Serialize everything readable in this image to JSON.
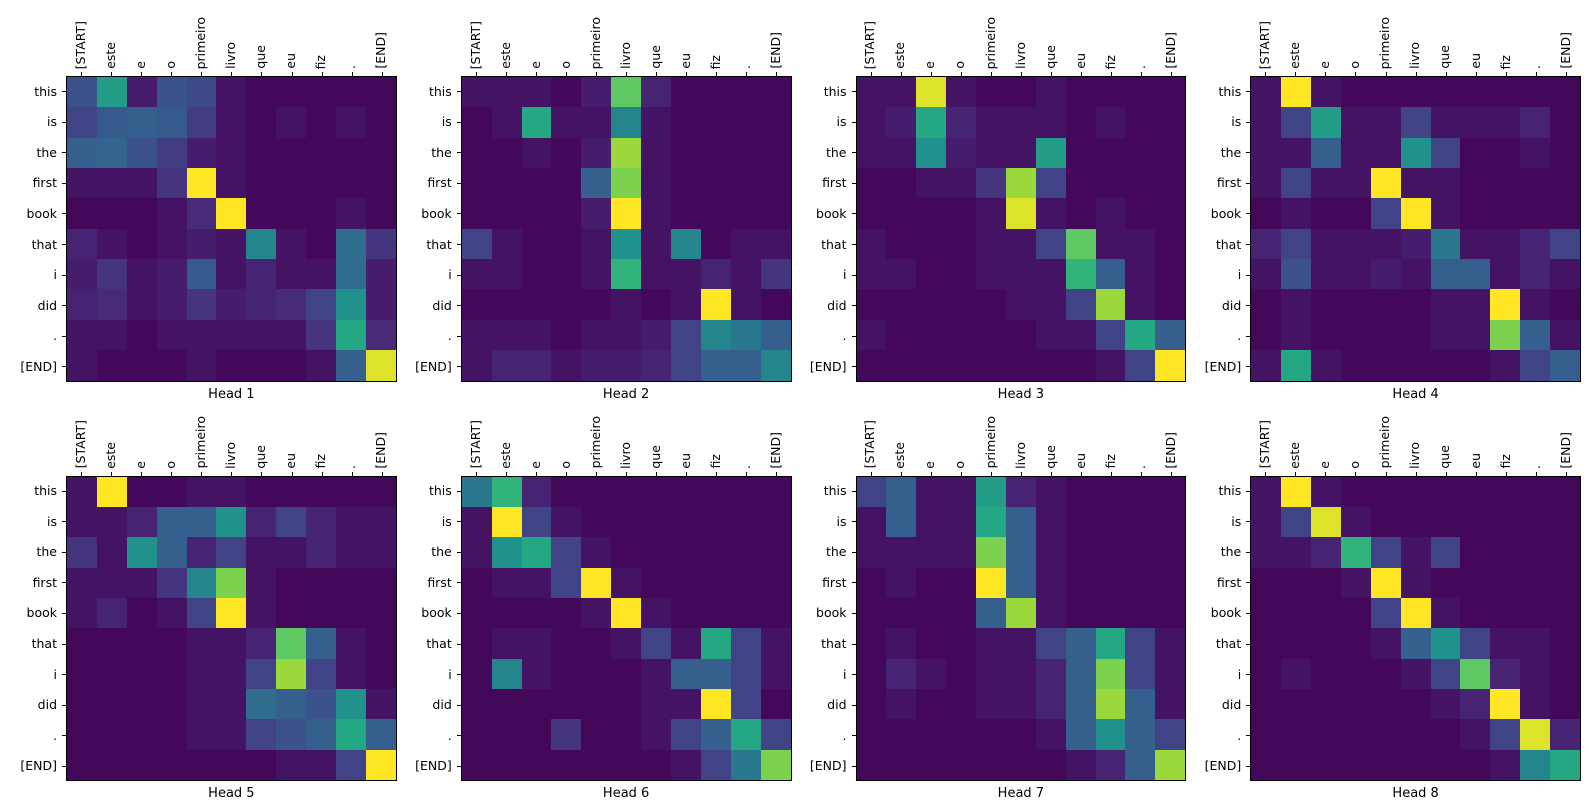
{
  "figure": {
    "background": "#ffffff",
    "colormap": "viridis",
    "colormap_stops": [
      "#440154",
      "#472d7b",
      "#3b528b",
      "#2c728e",
      "#21918c",
      "#27ad81",
      "#5ec962",
      "#aadc32",
      "#fde725"
    ]
  },
  "chart_data": {
    "type": "heatmap",
    "layout": {
      "rows": 2,
      "cols": 4
    },
    "x_tick_labels": [
      "[START]",
      "este",
      "e",
      "o",
      "primeiro",
      "livro",
      "que",
      "eu",
      "fiz",
      ".",
      "[END]"
    ],
    "y_tick_labels": [
      "this",
      "is",
      "the",
      "first",
      "book",
      "that",
      "i",
      "did",
      ".",
      "[END]"
    ],
    "value_range": [
      0,
      1
    ],
    "grid": false,
    "heads": [
      {
        "title": "Head 1",
        "values": [
          [
            0.25,
            0.55,
            0.08,
            0.25,
            0.22,
            0.05,
            0.02,
            0.02,
            0.02,
            0.02,
            0.02
          ],
          [
            0.2,
            0.28,
            0.3,
            0.28,
            0.18,
            0.05,
            0.02,
            0.05,
            0.02,
            0.05,
            0.02
          ],
          [
            0.3,
            0.32,
            0.25,
            0.18,
            0.08,
            0.05,
            0.02,
            0.02,
            0.02,
            0.02,
            0.02
          ],
          [
            0.05,
            0.05,
            0.05,
            0.15,
            1.0,
            0.05,
            0.02,
            0.02,
            0.02,
            0.02,
            0.02
          ],
          [
            0.02,
            0.02,
            0.02,
            0.05,
            0.12,
            1.0,
            0.02,
            0.02,
            0.02,
            0.05,
            0.02
          ],
          [
            0.1,
            0.05,
            0.02,
            0.05,
            0.08,
            0.05,
            0.45,
            0.05,
            0.02,
            0.35,
            0.15
          ],
          [
            0.08,
            0.15,
            0.05,
            0.08,
            0.28,
            0.05,
            0.1,
            0.05,
            0.05,
            0.35,
            0.08
          ],
          [
            0.1,
            0.12,
            0.05,
            0.08,
            0.15,
            0.08,
            0.1,
            0.12,
            0.2,
            0.5,
            0.08
          ],
          [
            0.05,
            0.05,
            0.02,
            0.05,
            0.05,
            0.05,
            0.05,
            0.05,
            0.15,
            0.6,
            0.12
          ],
          [
            0.05,
            0.02,
            0.02,
            0.02,
            0.05,
            0.02,
            0.02,
            0.02,
            0.05,
            0.3,
            0.95
          ]
        ]
      },
      {
        "title": "Head 2",
        "values": [
          [
            0.05,
            0.05,
            0.05,
            0.02,
            0.08,
            0.75,
            0.1,
            0.02,
            0.02,
            0.02,
            0.02
          ],
          [
            0.02,
            0.05,
            0.6,
            0.05,
            0.05,
            0.45,
            0.05,
            0.02,
            0.02,
            0.02,
            0.02
          ],
          [
            0.02,
            0.02,
            0.05,
            0.02,
            0.08,
            0.85,
            0.05,
            0.02,
            0.02,
            0.02,
            0.02
          ],
          [
            0.02,
            0.02,
            0.02,
            0.02,
            0.3,
            0.8,
            0.05,
            0.02,
            0.02,
            0.02,
            0.02
          ],
          [
            0.02,
            0.02,
            0.02,
            0.02,
            0.08,
            1.0,
            0.05,
            0.02,
            0.02,
            0.02,
            0.02
          ],
          [
            0.2,
            0.05,
            0.02,
            0.02,
            0.05,
            0.5,
            0.05,
            0.45,
            0.02,
            0.05,
            0.05
          ],
          [
            0.05,
            0.05,
            0.02,
            0.02,
            0.05,
            0.65,
            0.05,
            0.05,
            0.1,
            0.05,
            0.15
          ],
          [
            0.02,
            0.02,
            0.02,
            0.02,
            0.02,
            0.05,
            0.02,
            0.05,
            1.0,
            0.05,
            0.02
          ],
          [
            0.05,
            0.05,
            0.05,
            0.02,
            0.05,
            0.05,
            0.08,
            0.2,
            0.45,
            0.4,
            0.3
          ],
          [
            0.05,
            0.1,
            0.1,
            0.05,
            0.08,
            0.08,
            0.1,
            0.2,
            0.3,
            0.3,
            0.45
          ]
        ]
      },
      {
        "title": "Head 3",
        "values": [
          [
            0.05,
            0.05,
            0.95,
            0.05,
            0.02,
            0.02,
            0.05,
            0.02,
            0.02,
            0.02,
            0.02
          ],
          [
            0.05,
            0.08,
            0.6,
            0.1,
            0.05,
            0.05,
            0.05,
            0.02,
            0.05,
            0.02,
            0.02
          ],
          [
            0.05,
            0.05,
            0.5,
            0.08,
            0.05,
            0.05,
            0.55,
            0.02,
            0.02,
            0.02,
            0.02
          ],
          [
            0.02,
            0.02,
            0.05,
            0.05,
            0.15,
            0.85,
            0.2,
            0.02,
            0.02,
            0.02,
            0.02
          ],
          [
            0.02,
            0.02,
            0.02,
            0.02,
            0.05,
            0.95,
            0.05,
            0.02,
            0.05,
            0.02,
            0.02
          ],
          [
            0.05,
            0.02,
            0.02,
            0.02,
            0.05,
            0.05,
            0.2,
            0.75,
            0.05,
            0.05,
            0.02
          ],
          [
            0.05,
            0.05,
            0.02,
            0.02,
            0.05,
            0.05,
            0.05,
            0.65,
            0.3,
            0.05,
            0.02
          ],
          [
            0.02,
            0.02,
            0.02,
            0.02,
            0.02,
            0.05,
            0.05,
            0.2,
            0.85,
            0.05,
            0.02
          ],
          [
            0.05,
            0.02,
            0.02,
            0.02,
            0.02,
            0.02,
            0.05,
            0.05,
            0.2,
            0.6,
            0.3
          ],
          [
            0.02,
            0.02,
            0.02,
            0.02,
            0.02,
            0.02,
            0.02,
            0.02,
            0.05,
            0.2,
            1.0
          ]
        ]
      },
      {
        "title": "Head 4",
        "values": [
          [
            0.05,
            1.0,
            0.05,
            0.02,
            0.02,
            0.02,
            0.02,
            0.02,
            0.02,
            0.02,
            0.02
          ],
          [
            0.05,
            0.2,
            0.55,
            0.05,
            0.05,
            0.2,
            0.05,
            0.05,
            0.05,
            0.1,
            0.02
          ],
          [
            0.05,
            0.05,
            0.3,
            0.05,
            0.05,
            0.5,
            0.2,
            0.02,
            0.02,
            0.05,
            0.02
          ],
          [
            0.05,
            0.2,
            0.05,
            0.05,
            1.0,
            0.05,
            0.05,
            0.02,
            0.02,
            0.02,
            0.02
          ],
          [
            0.02,
            0.05,
            0.02,
            0.02,
            0.2,
            1.0,
            0.05,
            0.02,
            0.02,
            0.02,
            0.02
          ],
          [
            0.1,
            0.2,
            0.05,
            0.05,
            0.05,
            0.08,
            0.4,
            0.05,
            0.05,
            0.1,
            0.2
          ],
          [
            0.05,
            0.25,
            0.05,
            0.05,
            0.08,
            0.05,
            0.3,
            0.3,
            0.05,
            0.1,
            0.05
          ],
          [
            0.02,
            0.05,
            0.02,
            0.02,
            0.02,
            0.02,
            0.05,
            0.05,
            1.0,
            0.05,
            0.02
          ],
          [
            0.02,
            0.05,
            0.02,
            0.02,
            0.02,
            0.02,
            0.05,
            0.05,
            0.8,
            0.3,
            0.05
          ],
          [
            0.05,
            0.6,
            0.05,
            0.02,
            0.02,
            0.02,
            0.02,
            0.02,
            0.05,
            0.2,
            0.3
          ]
        ]
      },
      {
        "title": "Head 5",
        "values": [
          [
            0.05,
            1.0,
            0.02,
            0.02,
            0.05,
            0.05,
            0.02,
            0.02,
            0.02,
            0.02,
            0.02
          ],
          [
            0.05,
            0.05,
            0.1,
            0.3,
            0.3,
            0.5,
            0.1,
            0.2,
            0.1,
            0.05,
            0.05
          ],
          [
            0.15,
            0.05,
            0.5,
            0.3,
            0.1,
            0.2,
            0.05,
            0.05,
            0.1,
            0.05,
            0.05
          ],
          [
            0.05,
            0.05,
            0.05,
            0.15,
            0.45,
            0.8,
            0.05,
            0.02,
            0.02,
            0.02,
            0.02
          ],
          [
            0.05,
            0.1,
            0.02,
            0.05,
            0.2,
            1.0,
            0.05,
            0.02,
            0.02,
            0.02,
            0.02
          ],
          [
            0.02,
            0.02,
            0.02,
            0.02,
            0.05,
            0.05,
            0.1,
            0.75,
            0.3,
            0.05,
            0.02
          ],
          [
            0.02,
            0.02,
            0.02,
            0.02,
            0.05,
            0.05,
            0.2,
            0.85,
            0.2,
            0.05,
            0.02
          ],
          [
            0.02,
            0.02,
            0.02,
            0.02,
            0.05,
            0.05,
            0.35,
            0.3,
            0.25,
            0.5,
            0.05
          ],
          [
            0.02,
            0.02,
            0.02,
            0.02,
            0.05,
            0.05,
            0.2,
            0.25,
            0.3,
            0.6,
            0.3
          ],
          [
            0.02,
            0.02,
            0.02,
            0.02,
            0.02,
            0.02,
            0.02,
            0.05,
            0.05,
            0.2,
            1.0
          ]
        ]
      },
      {
        "title": "Head 6",
        "values": [
          [
            0.4,
            0.65,
            0.1,
            0.02,
            0.02,
            0.02,
            0.02,
            0.02,
            0.02,
            0.02,
            0.02
          ],
          [
            0.05,
            1.0,
            0.2,
            0.05,
            0.02,
            0.02,
            0.02,
            0.02,
            0.02,
            0.02,
            0.02
          ],
          [
            0.05,
            0.5,
            0.6,
            0.2,
            0.05,
            0.02,
            0.02,
            0.02,
            0.02,
            0.02,
            0.02
          ],
          [
            0.02,
            0.05,
            0.05,
            0.2,
            1.0,
            0.05,
            0.02,
            0.02,
            0.02,
            0.02,
            0.02
          ],
          [
            0.02,
            0.02,
            0.02,
            0.02,
            0.05,
            1.0,
            0.05,
            0.02,
            0.02,
            0.02,
            0.02
          ],
          [
            0.02,
            0.05,
            0.05,
            0.02,
            0.02,
            0.05,
            0.2,
            0.05,
            0.6,
            0.2,
            0.05
          ],
          [
            0.02,
            0.45,
            0.05,
            0.02,
            0.02,
            0.02,
            0.05,
            0.3,
            0.3,
            0.2,
            0.05
          ],
          [
            0.02,
            0.02,
            0.02,
            0.02,
            0.02,
            0.02,
            0.05,
            0.05,
            1.0,
            0.2,
            0.02
          ],
          [
            0.02,
            0.02,
            0.02,
            0.15,
            0.02,
            0.02,
            0.05,
            0.2,
            0.3,
            0.6,
            0.2
          ],
          [
            0.02,
            0.02,
            0.02,
            0.02,
            0.02,
            0.02,
            0.02,
            0.05,
            0.2,
            0.4,
            0.8
          ]
        ]
      },
      {
        "title": "Head 7",
        "values": [
          [
            0.2,
            0.3,
            0.05,
            0.05,
            0.55,
            0.1,
            0.05,
            0.02,
            0.02,
            0.02,
            0.02
          ],
          [
            0.05,
            0.3,
            0.05,
            0.05,
            0.6,
            0.3,
            0.05,
            0.02,
            0.02,
            0.02,
            0.02
          ],
          [
            0.05,
            0.05,
            0.05,
            0.05,
            0.8,
            0.3,
            0.05,
            0.02,
            0.02,
            0.02,
            0.02
          ],
          [
            0.02,
            0.05,
            0.02,
            0.02,
            1.0,
            0.3,
            0.05,
            0.02,
            0.02,
            0.02,
            0.02
          ],
          [
            0.02,
            0.02,
            0.02,
            0.02,
            0.3,
            0.85,
            0.05,
            0.02,
            0.02,
            0.02,
            0.02
          ],
          [
            0.02,
            0.05,
            0.02,
            0.02,
            0.05,
            0.05,
            0.2,
            0.3,
            0.6,
            0.2,
            0.05
          ],
          [
            0.02,
            0.1,
            0.05,
            0.02,
            0.05,
            0.05,
            0.1,
            0.3,
            0.8,
            0.2,
            0.05
          ],
          [
            0.02,
            0.05,
            0.02,
            0.02,
            0.05,
            0.05,
            0.1,
            0.3,
            0.85,
            0.3,
            0.05
          ],
          [
            0.02,
            0.02,
            0.02,
            0.02,
            0.02,
            0.02,
            0.05,
            0.3,
            0.5,
            0.3,
            0.2
          ],
          [
            0.02,
            0.02,
            0.02,
            0.02,
            0.02,
            0.02,
            0.02,
            0.05,
            0.1,
            0.3,
            0.85
          ]
        ]
      },
      {
        "title": "Head 8",
        "values": [
          [
            0.05,
            1.0,
            0.05,
            0.02,
            0.02,
            0.02,
            0.02,
            0.02,
            0.02,
            0.02,
            0.02
          ],
          [
            0.05,
            0.2,
            0.95,
            0.05,
            0.02,
            0.02,
            0.02,
            0.02,
            0.02,
            0.02,
            0.02
          ],
          [
            0.05,
            0.05,
            0.1,
            0.65,
            0.2,
            0.05,
            0.2,
            0.02,
            0.02,
            0.02,
            0.02
          ],
          [
            0.02,
            0.02,
            0.02,
            0.05,
            1.0,
            0.05,
            0.02,
            0.02,
            0.02,
            0.02,
            0.02
          ],
          [
            0.02,
            0.02,
            0.02,
            0.02,
            0.2,
            1.0,
            0.05,
            0.02,
            0.02,
            0.02,
            0.02
          ],
          [
            0.02,
            0.02,
            0.02,
            0.02,
            0.05,
            0.3,
            0.5,
            0.2,
            0.05,
            0.05,
            0.02
          ],
          [
            0.02,
            0.05,
            0.02,
            0.02,
            0.02,
            0.05,
            0.2,
            0.75,
            0.1,
            0.05,
            0.02
          ],
          [
            0.02,
            0.02,
            0.02,
            0.02,
            0.02,
            0.02,
            0.05,
            0.1,
            1.0,
            0.05,
            0.02
          ],
          [
            0.02,
            0.02,
            0.02,
            0.02,
            0.02,
            0.02,
            0.02,
            0.05,
            0.2,
            0.95,
            0.1
          ],
          [
            0.02,
            0.02,
            0.02,
            0.02,
            0.02,
            0.02,
            0.02,
            0.02,
            0.05,
            0.45,
            0.6
          ]
        ]
      }
    ]
  }
}
